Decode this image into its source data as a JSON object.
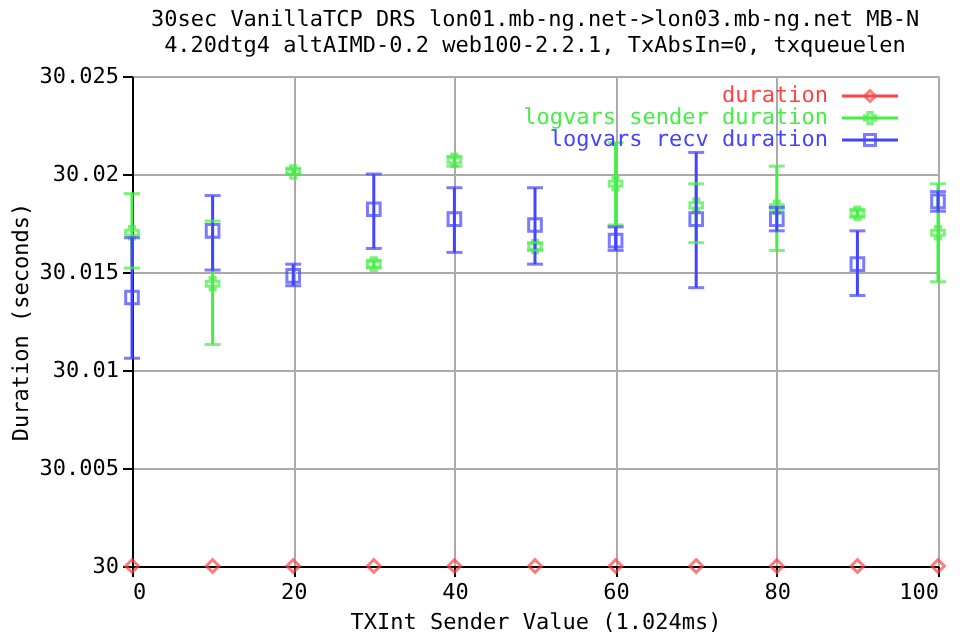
{
  "chart_data": {
    "type": "scatter",
    "title": [
      "30sec VanillaTCP DRS lon01.mb-ng.net->lon03.mb-ng.net MB-N",
      "4.20dtg4 altAIMD-0.2 web100-2.2.1, TxAbsIn=0, txqueuelen"
    ],
    "xlabel": "TXInt Sender Value (1.024ms)",
    "ylabel": "Duration (seconds)",
    "x": [
      0,
      10,
      20,
      30,
      40,
      50,
      60,
      70,
      80,
      90,
      100
    ],
    "series": [
      {
        "name": "duration",
        "color": "#ff4444",
        "marker": "diamond",
        "values": [
          30,
          30,
          30,
          30,
          30,
          30,
          30,
          30,
          30,
          30,
          30
        ]
      },
      {
        "name": "logvars sender duration",
        "color": "#44ee44",
        "marker": "cross",
        "values": [
          30.017,
          30.0144,
          30.0201,
          30.0154,
          30.0207,
          30.0163,
          30.0195,
          30.0184,
          30.0183,
          30.018,
          30.017
        ],
        "errors": [
          [
            30.0152,
            30.019
          ],
          [
            30.0113,
            30.0176
          ],
          [
            30.02,
            30.0203
          ],
          [
            30.0152,
            30.0156
          ],
          [
            30.0204,
            30.0209
          ],
          [
            30.0161,
            30.0165
          ],
          [
            30.0174,
            30.0216
          ],
          [
            30.0165,
            30.0195
          ],
          [
            30.0161,
            30.0204
          ],
          [
            30.0178,
            30.0182
          ],
          [
            30.0145,
            30.0195
          ]
        ]
      },
      {
        "name": "logvars recv duration",
        "color": "#4444ff",
        "marker": "square",
        "values": [
          30.0137,
          30.0171,
          30.0148,
          30.0182,
          30.0177,
          30.0174,
          30.0166,
          30.0177,
          30.0177,
          30.0154,
          30.0186
        ],
        "errors": [
          [
            30.0106,
            30.01675
          ],
          [
            30.0151,
            30.0189
          ],
          [
            30.0143,
            30.0154
          ],
          [
            30.0162,
            30.02
          ],
          [
            30.016,
            30.0193
          ],
          [
            30.0154,
            30.0193
          ],
          [
            30.0161,
            30.0173
          ],
          [
            30.0142,
            30.0211
          ],
          [
            30.0171,
            30.0183
          ],
          [
            30.0138,
            30.0171
          ],
          [
            30.0181,
            30.0191
          ]
        ]
      }
    ],
    "xlim": [
      0,
      100
    ],
    "xticks": [
      0,
      20,
      40,
      60,
      80,
      100
    ],
    "ylim": [
      30,
      30.025
    ],
    "yticks": [
      30,
      30.005,
      30.01,
      30.015,
      30.02,
      30.025
    ],
    "grid": true,
    "legend": "top right"
  }
}
